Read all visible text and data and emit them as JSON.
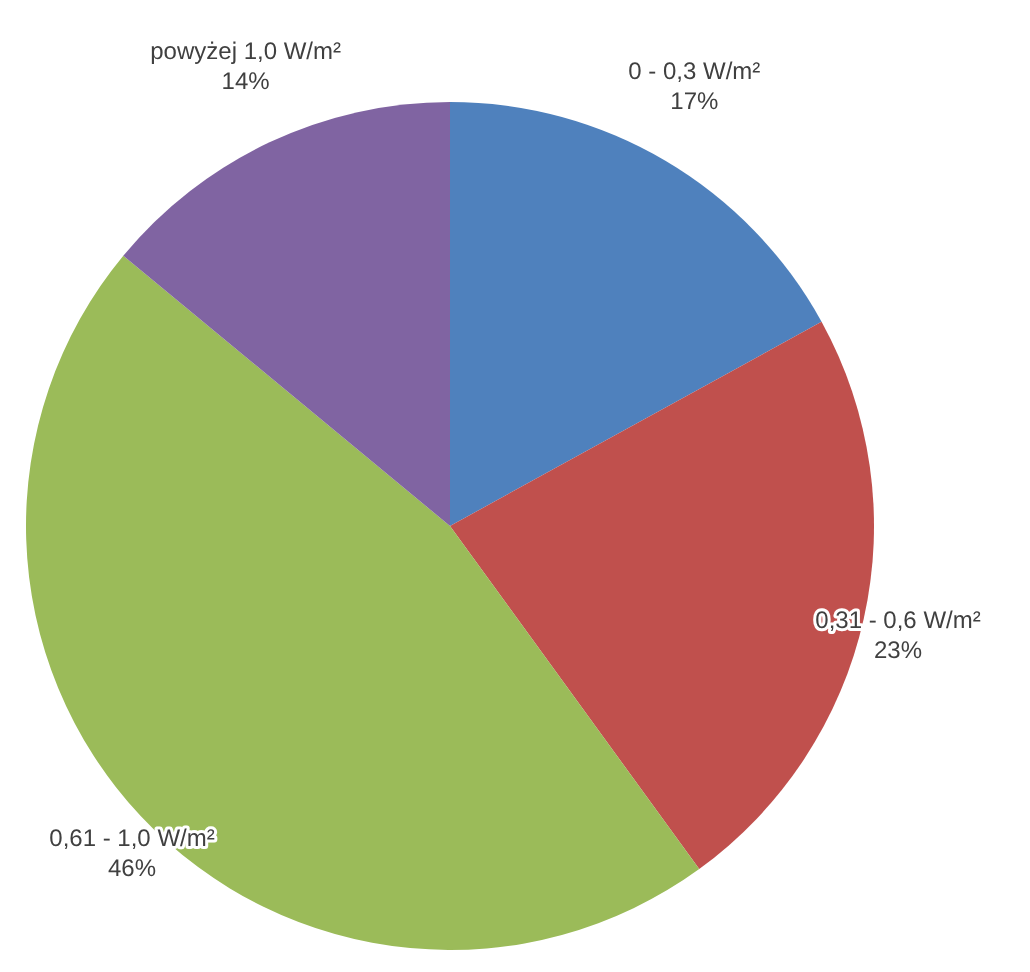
{
  "chart_data": {
    "type": "pie",
    "categories": [
      "0 - 0,3 W/m²",
      "0,31 - 0,6 W/m²",
      "0,61 - 1,0 W/m²",
      "powyżej 1,0 W/m²"
    ],
    "values": [
      17,
      23,
      46,
      14
    ],
    "value_labels": [
      "17%",
      "23%",
      "46%",
      "14%"
    ],
    "colors": [
      "#4f81bd",
      "#c0504d",
      "#9bbb59",
      "#8064a2"
    ],
    "legend": false
  }
}
